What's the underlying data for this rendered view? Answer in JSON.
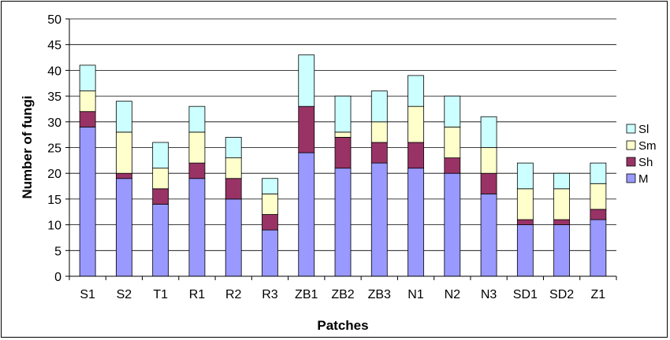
{
  "chart_data": {
    "type": "bar",
    "stacked": true,
    "xlabel": "Patches",
    "ylabel": "Number of fungi",
    "ylim": [
      0,
      50
    ],
    "yticks": [
      0,
      5,
      10,
      15,
      20,
      25,
      30,
      35,
      40,
      45,
      50
    ],
    "grid": true,
    "legend_position": "right",
    "categories": [
      "S1",
      "S2",
      "T1",
      "R1",
      "R2",
      "R3",
      "ZB1",
      "ZB2",
      "ZB3",
      "N1",
      "N2",
      "N3",
      "SD1",
      "SD2",
      "Z1"
    ],
    "series": [
      {
        "name": "M",
        "color": "#9999FF",
        "values": [
          29,
          19,
          14,
          19,
          15,
          9,
          24,
          21,
          22,
          21,
          20,
          16,
          10,
          10,
          11
        ]
      },
      {
        "name": "Sh",
        "color": "#993366",
        "values": [
          3,
          1,
          3,
          3,
          4,
          3,
          9,
          6,
          4,
          5,
          3,
          4,
          1,
          1,
          2
        ]
      },
      {
        "name": "Sm",
        "color": "#FFFFCC",
        "values": [
          4,
          8,
          4,
          6,
          4,
          4,
          0,
          1,
          4,
          7,
          6,
          5,
          6,
          6,
          5
        ]
      },
      {
        "name": "Sl",
        "color": "#CCFFFF",
        "values": [
          5,
          6,
          5,
          5,
          4,
          3,
          10,
          7,
          6,
          6,
          6,
          6,
          5,
          3,
          4
        ]
      }
    ],
    "legend_order": [
      "Sl",
      "Sm",
      "Sh",
      "M"
    ]
  }
}
